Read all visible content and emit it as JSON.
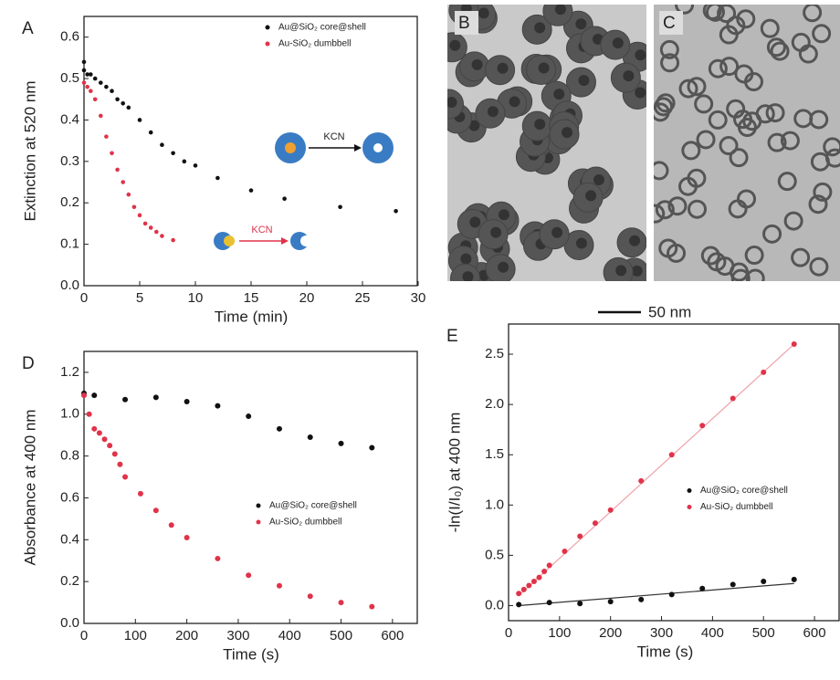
{
  "chart_data": [
    {
      "type": "scatter",
      "panel": "A",
      "xlabel": "Time (min)",
      "ylabel": "Extinction at 520 nm",
      "xlim": [
        0,
        30
      ],
      "ylim": [
        0,
        0.65
      ],
      "xticks": [
        0,
        5,
        10,
        15,
        20,
        25,
        30
      ],
      "yticks": [
        {
          "value": 0,
          "label": "0.0"
        },
        0.1,
        0.2,
        0.3,
        0.4,
        0.5,
        0.6
      ],
      "legend": "upper right",
      "annotations": [
        "KCN",
        "KCN"
      ],
      "series": [
        {
          "name": "Au@SiO₂ core@shell",
          "color": "#111111",
          "x": [
            0,
            0,
            0.3,
            0.6,
            1,
            1.5,
            2,
            2.5,
            3,
            3.5,
            4,
            5,
            6,
            7,
            8,
            9,
            10,
            12,
            15,
            18,
            23,
            28
          ],
          "values": [
            0.54,
            0.52,
            0.51,
            0.51,
            0.5,
            0.49,
            0.48,
            0.47,
            0.45,
            0.44,
            0.43,
            0.4,
            0.37,
            0.34,
            0.32,
            0.3,
            0.29,
            0.26,
            0.23,
            0.21,
            0.19,
            0.18
          ]
        },
        {
          "name": "Au-SiO₂ dumbbell",
          "color": "#e0334a",
          "x": [
            0,
            0.3,
            0.6,
            1,
            1.5,
            2,
            2.5,
            3,
            3.5,
            4,
            4.5,
            5,
            5.5,
            6,
            6.5,
            7,
            8
          ],
          "values": [
            0.49,
            0.48,
            0.47,
            0.45,
            0.41,
            0.36,
            0.32,
            0.28,
            0.25,
            0.22,
            0.19,
            0.17,
            0.15,
            0.14,
            0.13,
            0.12,
            0.11
          ]
        }
      ]
    },
    {
      "type": "scatter",
      "panel": "D",
      "xlabel": "Time (s)",
      "ylabel": "Absorbance at 400 nm",
      "xlim": [
        0,
        650
      ],
      "ylim": [
        0,
        1.3
      ],
      "xticks": [
        0,
        100,
        200,
        300,
        400,
        500,
        600
      ],
      "yticks": [
        {
          "value": 0,
          "label": "0.0"
        },
        0.2,
        0.4,
        0.6,
        0.8,
        {
          "value": 1,
          "label": "1.0"
        },
        1.2
      ],
      "legend": "center right",
      "series": [
        {
          "name": "Au@SiO₂ core@shell",
          "color": "#111111",
          "x": [
            0,
            20,
            80,
            140,
            200,
            260,
            320,
            380,
            440,
            500,
            560
          ],
          "values": [
            1.1,
            1.09,
            1.07,
            1.08,
            1.06,
            1.04,
            0.99,
            0.93,
            0.89,
            0.86,
            0.84
          ]
        },
        {
          "name": "Au-SiO₂ dumbbell",
          "color": "#e0334a",
          "x": [
            0,
            10,
            20,
            30,
            40,
            50,
            60,
            70,
            80,
            110,
            140,
            170,
            200,
            260,
            320,
            380,
            440,
            500,
            560
          ],
          "values": [
            1.09,
            1.0,
            0.93,
            0.91,
            0.88,
            0.85,
            0.81,
            0.76,
            0.7,
            0.62,
            0.54,
            0.47,
            0.41,
            0.31,
            0.23,
            0.18,
            0.13,
            0.1,
            0.08
          ]
        }
      ]
    },
    {
      "type": "scatter",
      "panel": "E",
      "xlabel": "Time (s)",
      "ylabel": "-ln(I/I₀) at 400 nm",
      "xlim": [
        0,
        650
      ],
      "ylim": [
        -0.15,
        2.8
      ],
      "xticks": [
        0,
        100,
        200,
        300,
        400,
        500,
        600
      ],
      "yticks": [
        {
          "value": 0,
          "label": "0.0"
        },
        0.5,
        {
          "value": 1,
          "label": "1.0"
        },
        1.5,
        {
          "value": 2,
          "label": "2.0"
        },
        2.5
      ],
      "legend": "center right",
      "series": [
        {
          "name": "Au@SiO₂ core@shell",
          "color": "#111111",
          "x": [
            20,
            80,
            140,
            200,
            260,
            320,
            380,
            440,
            500,
            560
          ],
          "values": [
            0.01,
            0.03,
            0.02,
            0.04,
            0.06,
            0.11,
            0.17,
            0.21,
            0.24,
            0.26
          ],
          "fit_x": [
            20,
            560
          ],
          "fit_values": [
            0,
            0.22
          ]
        },
        {
          "name": "Au-SiO₂ dumbbell",
          "color": "#e0334a",
          "x": [
            20,
            30,
            40,
            50,
            60,
            70,
            80,
            110,
            140,
            170,
            200,
            260,
            320,
            380,
            440,
            500,
            560
          ],
          "values": [
            0.12,
            0.16,
            0.2,
            0.24,
            0.28,
            0.34,
            0.4,
            0.54,
            0.69,
            0.82,
            0.95,
            1.24,
            1.5,
            1.79,
            2.06,
            2.32,
            2.6
          ],
          "fit_x": [
            20,
            560
          ],
          "fit_values": [
            0.1,
            2.6
          ]
        }
      ]
    }
  ],
  "images": [
    {
      "label": "B"
    },
    {
      "label": "C"
    }
  ],
  "scale_bar": "50 nm"
}
